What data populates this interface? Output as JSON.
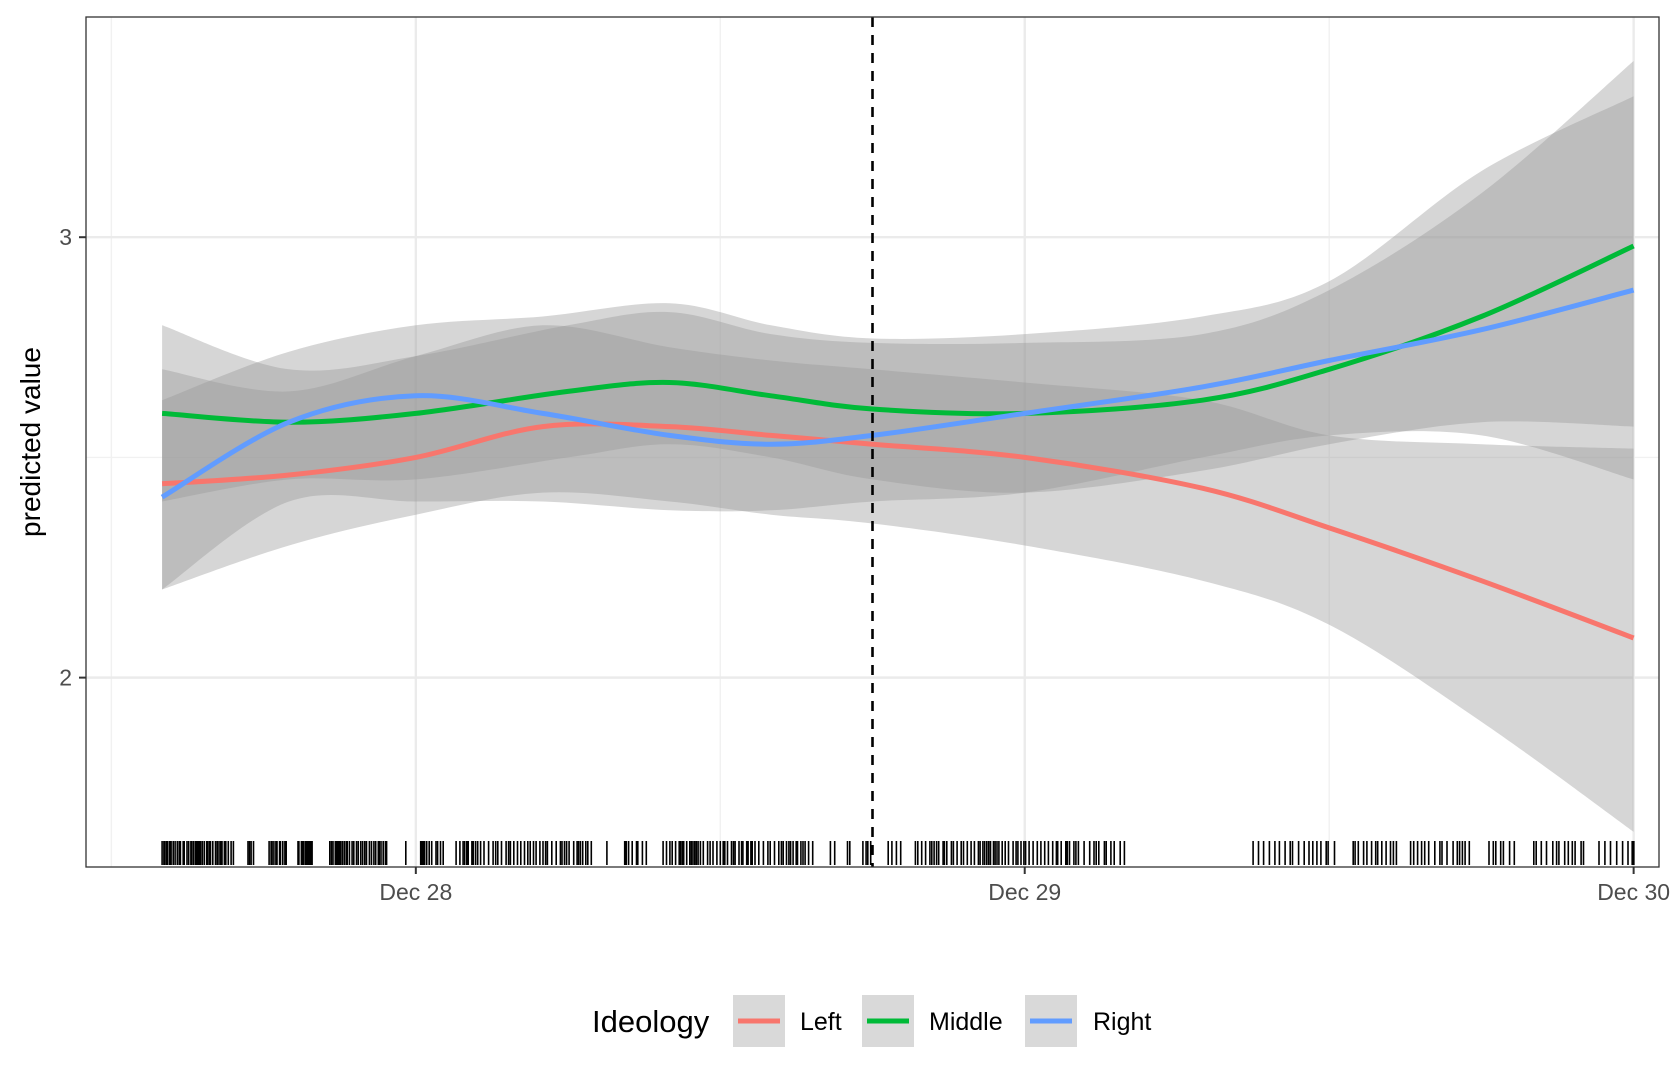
{
  "chart_data": {
    "type": "line",
    "title": "",
    "xlabel": "",
    "ylabel": "predicted value",
    "x_ticks": [
      {
        "value": "2020-12-28",
        "label": "Dec 28"
      },
      {
        "value": "2020-12-29",
        "label": "Dec 29"
      },
      {
        "value": "2020-12-30",
        "label": "Dec 30"
      }
    ],
    "y_ticks": [
      2,
      3
    ],
    "xlim": [
      "2020-12-27T11:00",
      "2020-12-30T01:00"
    ],
    "ylim": [
      1.57,
      3.5
    ],
    "grid": true,
    "legend": {
      "title": "Ideology",
      "position": "bottom"
    },
    "vline": {
      "x": "2020-12-28T18:00",
      "style": "dashed"
    },
    "series": [
      {
        "name": "Left",
        "color": "#F8766D",
        "points": [
          {
            "x": "2020-12-27T14:00",
            "y": 2.44,
            "lo": 2.2,
            "hi": 2.7
          },
          {
            "x": "2020-12-27T19:00",
            "y": 2.46,
            "lo": 2.3,
            "hi": 2.65
          },
          {
            "x": "2020-12-28T00:00",
            "y": 2.5,
            "lo": 2.37,
            "hi": 2.73
          },
          {
            "x": "2020-12-28T05:00",
            "y": 2.57,
            "lo": 2.42,
            "hi": 2.8
          },
          {
            "x": "2020-12-28T10:00",
            "y": 2.57,
            "lo": 2.4,
            "hi": 2.75
          },
          {
            "x": "2020-12-28T14:00",
            "y": 2.55,
            "lo": 2.37,
            "hi": 2.72
          },
          {
            "x": "2020-12-28T18:00",
            "y": 2.53,
            "lo": 2.35,
            "hi": 2.7
          },
          {
            "x": "2020-12-29T00:00",
            "y": 2.5,
            "lo": 2.3,
            "hi": 2.67
          },
          {
            "x": "2020-12-29T07:00",
            "y": 2.43,
            "lo": 2.22,
            "hi": 2.63
          },
          {
            "x": "2020-12-29T12:00",
            "y": 2.34,
            "lo": 2.12,
            "hi": 2.55
          },
          {
            "x": "2020-12-29T18:00",
            "y": 2.22,
            "lo": 1.9,
            "hi": 2.53
          },
          {
            "x": "2020-12-30T00:00",
            "y": 2.09,
            "lo": 1.65,
            "hi": 2.52
          }
        ]
      },
      {
        "name": "Middle",
        "color": "#00BA38",
        "points": [
          {
            "x": "2020-12-27T14:00",
            "y": 2.6,
            "lo": 2.4,
            "hi": 2.8
          },
          {
            "x": "2020-12-27T19:00",
            "y": 2.58,
            "lo": 2.45,
            "hi": 2.7
          },
          {
            "x": "2020-12-28T00:00",
            "y": 2.6,
            "lo": 2.45,
            "hi": 2.73
          },
          {
            "x": "2020-12-28T06:00",
            "y": 2.65,
            "lo": 2.5,
            "hi": 2.8
          },
          {
            "x": "2020-12-28T10:00",
            "y": 2.67,
            "lo": 2.53,
            "hi": 2.83
          },
          {
            "x": "2020-12-28T14:00",
            "y": 2.64,
            "lo": 2.5,
            "hi": 2.78
          },
          {
            "x": "2020-12-28T18:00",
            "y": 2.61,
            "lo": 2.45,
            "hi": 2.76
          },
          {
            "x": "2020-12-29T00:00",
            "y": 2.6,
            "lo": 2.42,
            "hi": 2.76
          },
          {
            "x": "2020-12-29T07:00",
            "y": 2.63,
            "lo": 2.47,
            "hi": 2.78
          },
          {
            "x": "2020-12-29T12:00",
            "y": 2.7,
            "lo": 2.53,
            "hi": 2.88
          },
          {
            "x": "2020-12-29T18:00",
            "y": 2.82,
            "lo": 2.58,
            "hi": 3.1
          },
          {
            "x": "2020-12-30T00:00",
            "y": 2.98,
            "lo": 2.57,
            "hi": 3.4
          }
        ]
      },
      {
        "name": "Right",
        "color": "#619CFF",
        "points": [
          {
            "x": "2020-12-27T14:00",
            "y": 2.41,
            "lo": 2.2,
            "hi": 2.63
          },
          {
            "x": "2020-12-27T19:00",
            "y": 2.58,
            "lo": 2.4,
            "hi": 2.74
          },
          {
            "x": "2020-12-28T00:00",
            "y": 2.64,
            "lo": 2.4,
            "hi": 2.8
          },
          {
            "x": "2020-12-28T05:00",
            "y": 2.6,
            "lo": 2.4,
            "hi": 2.82
          },
          {
            "x": "2020-12-28T10:00",
            "y": 2.55,
            "lo": 2.38,
            "hi": 2.85
          },
          {
            "x": "2020-12-28T14:00",
            "y": 2.53,
            "lo": 2.38,
            "hi": 2.8
          },
          {
            "x": "2020-12-28T18:00",
            "y": 2.55,
            "lo": 2.4,
            "hi": 2.77
          },
          {
            "x": "2020-12-29T00:00",
            "y": 2.6,
            "lo": 2.42,
            "hi": 2.78
          },
          {
            "x": "2020-12-29T07:00",
            "y": 2.66,
            "lo": 2.5,
            "hi": 2.82
          },
          {
            "x": "2020-12-29T12:00",
            "y": 2.72,
            "lo": 2.55,
            "hi": 2.9
          },
          {
            "x": "2020-12-29T18:00",
            "y": 2.79,
            "lo": 2.55,
            "hi": 3.15
          },
          {
            "x": "2020-12-30T00:00",
            "y": 2.88,
            "lo": 2.45,
            "hi": 3.32
          }
        ]
      }
    ],
    "rug": {
      "gap": [
        "2020-12-29T04:00",
        "2020-12-29T09:00"
      ],
      "density": "dense"
    }
  }
}
